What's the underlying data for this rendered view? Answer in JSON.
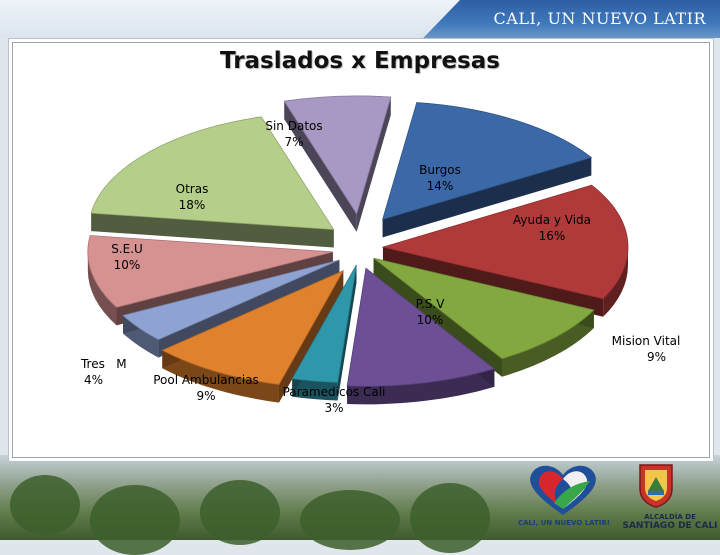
{
  "header": {
    "slogan": "CALI, UN NUEVO LATIR"
  },
  "footer": {
    "heart_logo_text": "CALI, UN NUEVO LATIR!",
    "alcaldia_line1": "ALCALDÍA DE",
    "alcaldia_line2": "SANTIAGO DE CALI"
  },
  "chart_data": {
    "type": "pie",
    "title": "Traslados x Empresas",
    "exploded": true,
    "three_d": true,
    "slices": [
      {
        "label": "Burgos",
        "percent": 14,
        "value_label": "14%",
        "color": "#3b69a8"
      },
      {
        "label": "Ayuda y Vida",
        "percent": 16,
        "value_label": "16%",
        "color": "#b03a3a"
      },
      {
        "label": "Mision Vital",
        "percent": 9,
        "value_label": "9%",
        "color": "#82a83f"
      },
      {
        "label": "P.S.V",
        "percent": 10,
        "value_label": "10%",
        "color": "#6d4f96"
      },
      {
        "label": "Paramedicos Cali",
        "percent": 3,
        "value_label": "3%",
        "color": "#2f97aa"
      },
      {
        "label": "Pool Ambulancias",
        "percent": 9,
        "value_label": "9%",
        "color": "#e0812e"
      },
      {
        "label": "Tres   M",
        "percent": 4,
        "value_label": "4%",
        "color": "#8ea3d2"
      },
      {
        "label": "S.E.U",
        "percent": 10,
        "value_label": "10%",
        "color": "#d69191"
      },
      {
        "label": "Otras",
        "percent": 18,
        "value_label": "18%",
        "color": "#b5cf8a"
      },
      {
        "label": "Sin Datos",
        "percent": 7,
        "value_label": "7%",
        "color": "#a899c4"
      }
    ]
  }
}
